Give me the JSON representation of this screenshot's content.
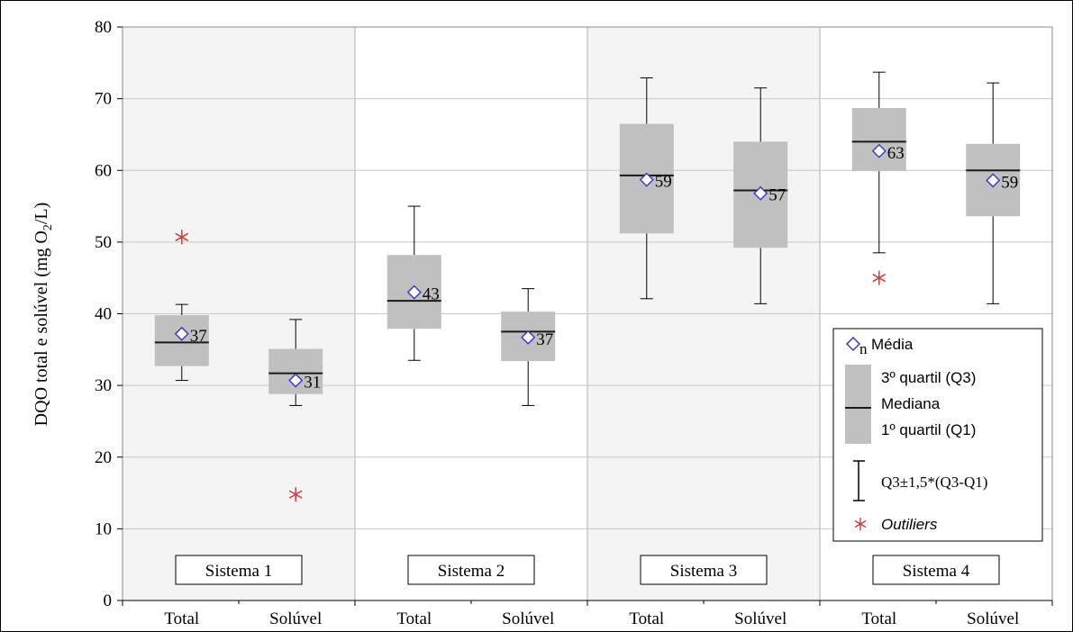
{
  "chart_data": {
    "type": "boxplot",
    "ylabel_main": "DQO total e solúvel (mg O",
    "ylabel_sub": "2",
    "ylabel_end": "/L)",
    "ylim": [
      0,
      80
    ],
    "yticks": [
      0,
      10,
      20,
      30,
      40,
      50,
      60,
      70,
      80
    ],
    "grid": true,
    "groups": [
      {
        "label": "Sistema 1",
        "shaded": true
      },
      {
        "label": "Sistema 2",
        "shaded": false
      },
      {
        "label": "Sistema 3",
        "shaded": true
      },
      {
        "label": "Sistema 4",
        "shaded": false
      }
    ],
    "boxes": [
      {
        "group": 0,
        "category": "Total",
        "whisker_low": 30.7,
        "q1": 32.7,
        "median": 36.0,
        "q3": 39.8,
        "whisker_high": 41.3,
        "mean": 37.2,
        "mean_label": "37",
        "outliers": [
          50.7
        ]
      },
      {
        "group": 0,
        "category": "Solúvel",
        "whisker_low": 27.2,
        "q1": 28.8,
        "median": 31.7,
        "q3": 35.1,
        "whisker_high": 39.2,
        "mean": 30.7,
        "mean_label": "31",
        "outliers": [
          14.8
        ]
      },
      {
        "group": 1,
        "category": "Total",
        "whisker_low": 33.5,
        "q1": 37.9,
        "median": 41.8,
        "q3": 48.2,
        "whisker_high": 55.0,
        "mean": 43.0,
        "mean_label": "43",
        "outliers": []
      },
      {
        "group": 1,
        "category": "Solúvel",
        "whisker_low": 27.2,
        "q1": 33.4,
        "median": 37.5,
        "q3": 40.3,
        "whisker_high": 43.5,
        "mean": 36.7,
        "mean_label": "37",
        "outliers": []
      },
      {
        "group": 2,
        "category": "Total",
        "whisker_low": 42.1,
        "q1": 51.2,
        "median": 59.3,
        "q3": 66.5,
        "whisker_high": 72.9,
        "mean": 58.7,
        "mean_label": "59",
        "outliers": []
      },
      {
        "group": 2,
        "category": "Solúvel",
        "whisker_low": 41.4,
        "q1": 49.2,
        "median": 57.2,
        "q3": 64.0,
        "whisker_high": 71.5,
        "mean": 56.8,
        "mean_label": "57",
        "outliers": []
      },
      {
        "group": 3,
        "category": "Total",
        "whisker_low": 48.5,
        "q1": 59.9,
        "median": 64.0,
        "q3": 68.7,
        "whisker_high": 73.7,
        "mean": 62.7,
        "mean_label": "63",
        "outliers": [
          45.0
        ]
      },
      {
        "group": 3,
        "category": "Solúvel",
        "whisker_low": 41.4,
        "q1": 53.6,
        "median": 60.0,
        "q3": 63.7,
        "whisker_high": 72.2,
        "mean": 58.6,
        "mean_label": "59",
        "outliers": []
      }
    ],
    "colors": {
      "box": "#c0c0c0",
      "median": "#1a1a1a",
      "mean_marker": "#3a3ad0",
      "outlier": "#d03a3a",
      "grid": "#c8c8c8",
      "shade": "#f4f4f4"
    },
    "legend": {
      "placement": "bottom-right",
      "mean_marker_char": "n",
      "mean_text": "Média",
      "q3_text": "3º quartil (Q3)",
      "median_text": "Mediana",
      "q1_text": "1º quartil (Q1)",
      "whisker_text": "Q3±1,5*(Q3-Q1)",
      "outlier_text": "Outiliers"
    }
  }
}
